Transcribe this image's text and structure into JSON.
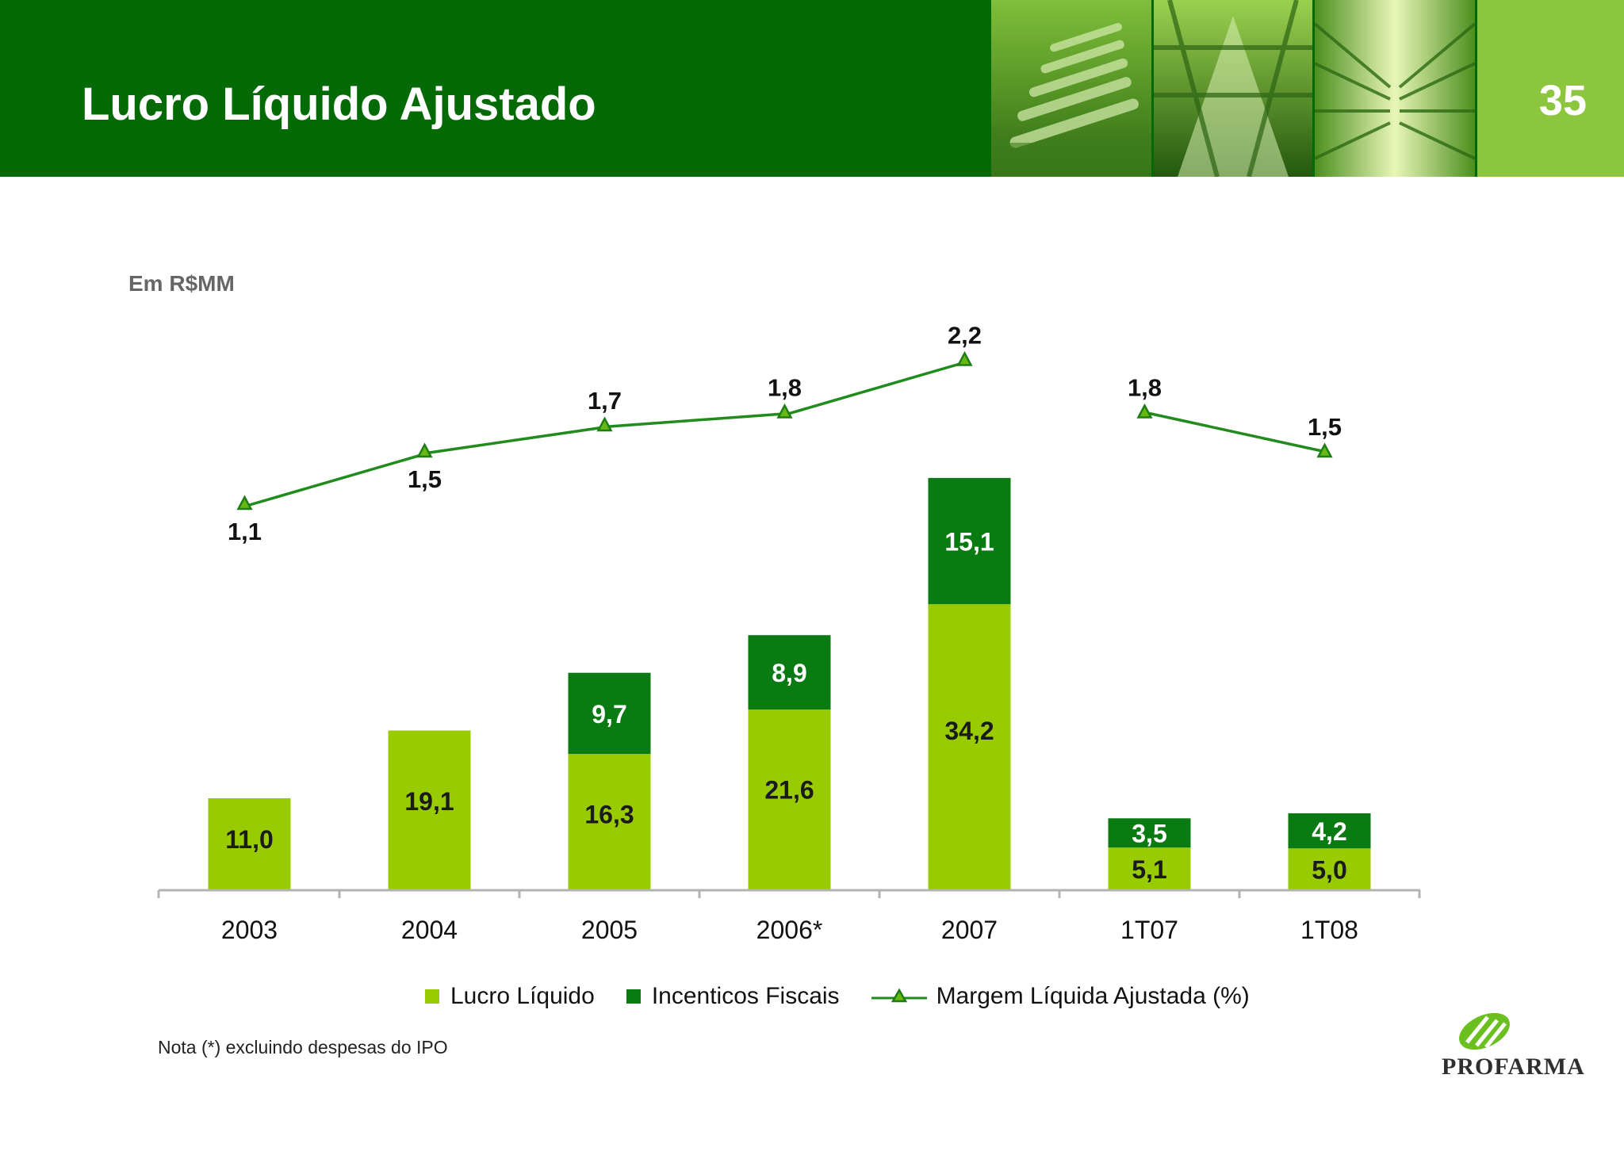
{
  "header": {
    "title": "Lucro Líquido Ajustado",
    "page_number": "35",
    "colors": {
      "dark_green": "#036a06",
      "light_green": "#8cc63f"
    }
  },
  "unit_label": "Em R$MM",
  "chart_data": {
    "type": "bar",
    "stacked": true,
    "categories": [
      "2003",
      "2004",
      "2005",
      "2006*",
      "2007",
      "1T07",
      "1T08"
    ],
    "series": [
      {
        "name": "Lucro Líquido",
        "color": "#99cc00",
        "values": [
          11.0,
          19.1,
          16.3,
          21.6,
          34.2,
          5.1,
          5.0
        ],
        "labels": [
          "11,0",
          "19,1",
          "16,3",
          "21,6",
          "34,2",
          "5,1",
          "5,0"
        ]
      },
      {
        "name": "Incenticos Fiscais",
        "color": "#0a7a12",
        "values": [
          null,
          null,
          9.7,
          8.9,
          15.1,
          3.5,
          4.2
        ],
        "labels": [
          "",
          "",
          "9,7",
          "8,9",
          "15,1",
          "3,5",
          "4,2"
        ]
      }
    ],
    "line_series": {
      "name": "Margem Líquida Ajustada (%)",
      "color": "#218c1d",
      "marker_color": "#66b813",
      "values": [
        1.1,
        1.5,
        1.7,
        1.8,
        2.2,
        1.8,
        1.5
      ],
      "labels": [
        "1,1",
        "1,5",
        "1,7",
        "1,8",
        "2,2",
        "1,8",
        "1,5"
      ],
      "segments": [
        [
          0,
          4
        ],
        [
          5,
          6
        ]
      ]
    },
    "legend": {
      "position": "bottom"
    },
    "grid": false
  },
  "footnote": "Nota (*) excluindo despesas do IPO",
  "logo": {
    "text": "PROFARMA"
  }
}
